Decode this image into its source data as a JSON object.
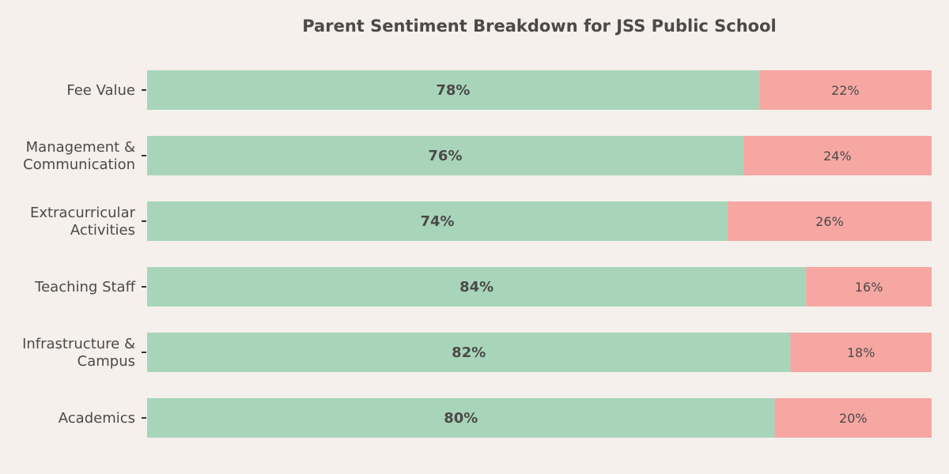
{
  "chart_data": {
    "type": "bar",
    "orientation": "horizontal",
    "stacked": true,
    "title": "Parent Sentiment Breakdown for JSS Public School",
    "xlabel": "",
    "ylabel": "",
    "xlim": [
      0,
      100
    ],
    "grid": false,
    "legend": "none",
    "categories": [
      "Academics",
      "Infrastructure & Campus",
      "Teaching Staff",
      "Extracurricular Activities",
      "Management & Communication",
      "Fee Value"
    ],
    "category_label_lines": [
      [
        "Academics"
      ],
      [
        "Infrastructure &",
        "Campus"
      ],
      [
        "Teaching Staff"
      ],
      [
        "Extracurricular",
        "Activities"
      ],
      [
        "Management &",
        "Communication"
      ],
      [
        "Fee Value"
      ]
    ],
    "series": [
      {
        "values": [
          80,
          82,
          84,
          74,
          76,
          78
        ],
        "labels": [
          "80%",
          "82%",
          "84%",
          "74%",
          "76%",
          "78%"
        ],
        "color": "#a8d5b9"
      },
      {
        "values": [
          20,
          18,
          16,
          26,
          24,
          22
        ],
        "labels": [
          "20%",
          "18%",
          "16%",
          "26%",
          "24%",
          "22%"
        ],
        "color": "#f6a7a2"
      }
    ],
    "colors": {
      "background": "#f5f0ec",
      "text": "#4a4a4a"
    }
  }
}
